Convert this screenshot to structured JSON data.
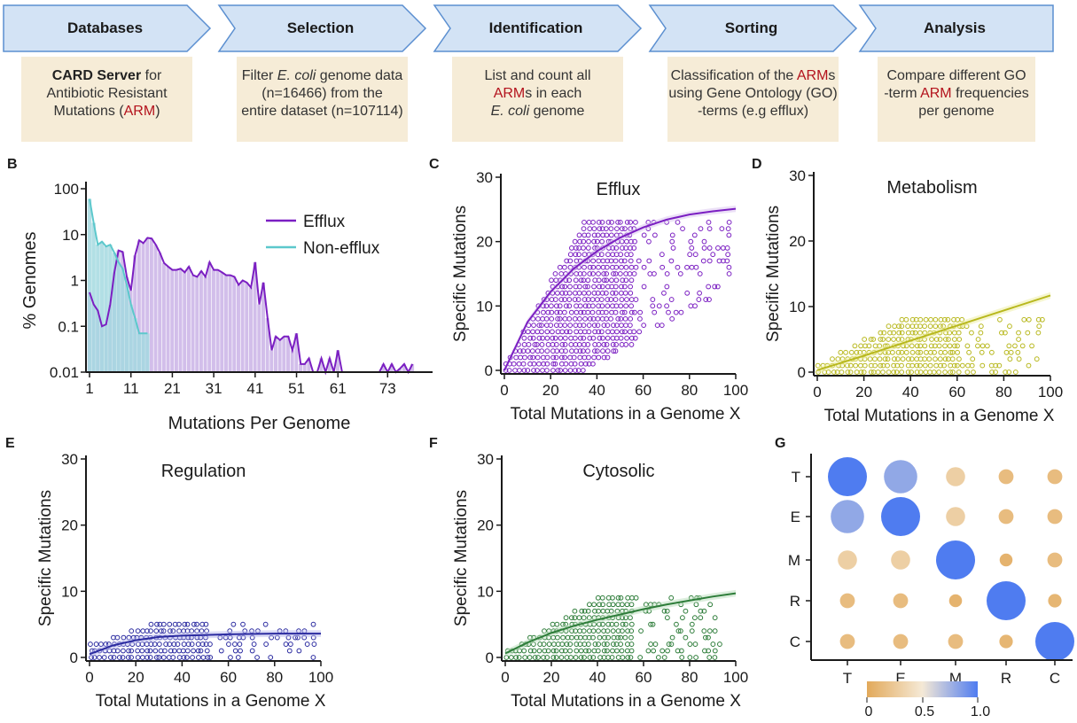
{
  "workflow": {
    "steps": [
      {
        "title": "Databases",
        "lines": [
          [
            {
              "t": "CARD  Server",
              "b": true
            },
            {
              "t": " for"
            }
          ],
          [
            {
              "t": "Antibiotic  Resistant"
            }
          ],
          [
            {
              "t": "Mutations ("
            },
            {
              "t": "ARM",
              "r": true
            },
            {
              "t": ")"
            }
          ]
        ]
      },
      {
        "title": "Selection",
        "lines": [
          [
            {
              "t": "Filter "
            },
            {
              "t": "E. coli",
              "i": true
            },
            {
              "t": " genome data"
            }
          ],
          [
            {
              "t": "(n=16466) from the"
            }
          ],
          [
            {
              "t": "entire dataset (n=107114)"
            }
          ]
        ]
      },
      {
        "title": "Identification",
        "lines": [
          [
            {
              "t": "List and count all"
            }
          ],
          [
            {
              "t": "ARM",
              "r": true
            },
            {
              "t": "s in each"
            }
          ],
          [
            {
              "t": "E. coli",
              "i": true
            },
            {
              "t": " genome"
            }
          ]
        ]
      },
      {
        "title": "Sorting",
        "lines": [
          [
            {
              "t": "Classification of the "
            },
            {
              "t": "ARM",
              "r": true
            },
            {
              "t": "s"
            }
          ],
          [
            {
              "t": "using Gene Ontology (GO)"
            }
          ],
          [
            {
              "t": "-terms (e.g  efflux)"
            }
          ]
        ]
      },
      {
        "title": "Analysis",
        "lines": [
          [
            {
              "t": "Compare different GO"
            }
          ],
          [
            {
              "t": "-term "
            },
            {
              "t": "ARM",
              "r": true
            },
            {
              "t": " frequencies"
            }
          ],
          [
            {
              "t": "per genome"
            }
          ]
        ]
      }
    ]
  },
  "panels": {
    "B": "B",
    "C": "C",
    "D": "D",
    "E": "E",
    "F": "F",
    "G": "G"
  },
  "colors": {
    "efflux": "#7B1FC2",
    "non_efflux": "#5CC8CC",
    "metabolism": "#C9C924",
    "regulation": "#2B2BA0",
    "cytosolic": "#2E7D3A",
    "banner_fill": "#D3E3F5",
    "banner_stroke": "#5B8FD0",
    "desc_fill": "#F6ECD7",
    "red": "#B3121C"
  },
  "chart_data": [
    {
      "id": "B",
      "type": "line",
      "xlabel": "Mutations Per Genome",
      "ylabel": "% Genomes",
      "y_scale": "log",
      "ylim": [
        0.01,
        100
      ],
      "xlim": [
        1,
        84
      ],
      "x_ticks": [
        1,
        11,
        21,
        31,
        41,
        51,
        61,
        73
      ],
      "y_ticks": [
        {
          "v": 100,
          "l": "100"
        },
        {
          "v": 10,
          "l": "10"
        },
        {
          "v": 1,
          "l": "1"
        },
        {
          "v": 0.1,
          "l": "0.1"
        },
        {
          "v": 0.01,
          "l": "0.01"
        }
      ],
      "legend": "top-right",
      "series": [
        {
          "name": "Efflux",
          "x": [
            1,
            2,
            3,
            4,
            5,
            6,
            7,
            8,
            9,
            10,
            11,
            12,
            13,
            14,
            15,
            16,
            17,
            18,
            19,
            20,
            21,
            22,
            23,
            24,
            25,
            26,
            27,
            28,
            29,
            30,
            31,
            32,
            33,
            34,
            35,
            36,
            37,
            38,
            39,
            40,
            41,
            42,
            43,
            44,
            45,
            46,
            47,
            48,
            49,
            50,
            51,
            52,
            53,
            54,
            55,
            56,
            57,
            58,
            59,
            60,
            61,
            62,
            67,
            68,
            69,
            70,
            71,
            72,
            73,
            74,
            75,
            76,
            77,
            78,
            79
          ],
          "y": [
            0.55,
            0.3,
            0.22,
            0.1,
            0.11,
            0.3,
            1.5,
            4.5,
            4.2,
            1.2,
            0.6,
            3.5,
            7.5,
            6.5,
            8.5,
            8.2,
            6.0,
            4.0,
            2.4,
            2.0,
            1.7,
            1.7,
            1.8,
            1.5,
            2.0,
            1.3,
            1.2,
            1.6,
            1.2,
            2.5,
            1.7,
            1.7,
            1.5,
            1.3,
            1.3,
            1.2,
            0.8,
            1.0,
            0.9,
            0.7,
            2.5,
            0.3,
            0.9,
            0.15,
            0.03,
            0.06,
            0.05,
            0.06,
            0.06,
            0.03,
            0.07,
            0.015,
            0.015,
            0.02,
            0.01,
            0.01,
            0.02,
            0.01,
            0.02,
            0.01,
            0.03,
            0.01,
            0.01,
            0.01,
            0.01,
            0.01,
            0.01,
            0.015,
            0.01,
            0.015,
            0.01,
            0.012,
            0.015,
            0.01,
            0.015
          ]
        },
        {
          "name": "Non-efflux",
          "x": [
            1,
            2,
            3,
            4,
            5,
            6,
            7,
            8,
            9,
            10,
            11,
            12,
            13,
            14,
            15
          ],
          "y": [
            60,
            18,
            6,
            7,
            5.5,
            6,
            4,
            2.5,
            1.8,
            0.8,
            0.3,
            0.15,
            0.07,
            0.07,
            0.07
          ]
        }
      ]
    },
    {
      "id": "C",
      "type": "scatter",
      "title": "Efflux",
      "xlabel": "Total Mutations in a Genome X",
      "ylabel": "Specific Mutations",
      "xlim": [
        0,
        100
      ],
      "ylim": [
        0,
        30
      ],
      "x_ticks": [
        0,
        20,
        40,
        60,
        80,
        100
      ],
      "y_ticks": [
        0,
        10,
        20,
        30
      ],
      "fit": {
        "x": [
          0,
          10,
          20,
          30,
          40,
          50,
          60,
          70,
          80,
          90,
          100
        ],
        "y": [
          0,
          7.5,
          12.2,
          15.8,
          18.5,
          20.6,
          22.2,
          23.4,
          24.2,
          24.7,
          25.1
        ]
      },
      "points": {
        "x_max": [
          16,
          24,
          32,
          42,
          50,
          60,
          70,
          85,
          98
        ],
        "y_at": [
          4,
          9,
          14,
          19,
          23,
          23,
          23,
          23,
          23
        ]
      }
    },
    {
      "id": "D",
      "type": "scatter",
      "title": "Metabolism",
      "xlabel": "Total Mutations in a Genome X",
      "ylabel": "Specific Mutations",
      "xlim": [
        0,
        100
      ],
      "ylim": [
        0,
        30
      ],
      "x_ticks": [
        0,
        20,
        40,
        60,
        80,
        100
      ],
      "y_ticks": [
        0,
        10,
        20,
        30
      ],
      "fit": {
        "x": [
          0,
          20,
          40,
          60,
          80,
          100
        ],
        "y": [
          0.3,
          2.5,
          4.8,
          7.1,
          9.4,
          11.7
        ]
      }
    },
    {
      "id": "E",
      "type": "scatter",
      "title": "Regulation",
      "xlabel": "Total Mutations in a Genome X",
      "ylabel": "Specific Mutations",
      "xlim": [
        0,
        100
      ],
      "ylim": [
        0,
        30
      ],
      "x_ticks": [
        0,
        20,
        40,
        60,
        80,
        100
      ],
      "y_ticks": [
        0,
        10,
        20,
        30
      ],
      "fit": {
        "x": [
          0,
          10,
          20,
          30,
          40,
          60,
          80,
          100
        ],
        "y": [
          0.5,
          1.8,
          2.6,
          3.1,
          3.3,
          3.5,
          3.6,
          3.6
        ]
      }
    },
    {
      "id": "F",
      "type": "scatter",
      "title": "Cytosolic",
      "xlabel": "Total Mutations in a Genome X",
      "ylabel": "Specific Mutations",
      "xlim": [
        0,
        100
      ],
      "ylim": [
        0,
        30
      ],
      "x_ticks": [
        0,
        20,
        40,
        60,
        80,
        100
      ],
      "y_ticks": [
        0,
        10,
        20,
        30
      ],
      "fit": {
        "x": [
          0,
          10,
          20,
          30,
          40,
          50,
          60,
          70,
          80,
          90,
          100
        ],
        "y": [
          0.6,
          2.3,
          3.7,
          4.8,
          5.7,
          6.5,
          7.3,
          8.0,
          8.6,
          9.2,
          9.7
        ]
      }
    },
    {
      "id": "G",
      "type": "heatmap",
      "rows": [
        "T",
        "E",
        "M",
        "R",
        "C"
      ],
      "cols": [
        "T",
        "E",
        "M",
        "R",
        "C"
      ],
      "values": [
        [
          1.0,
          0.8,
          0.3,
          0.15,
          0.15
        ],
        [
          0.8,
          1.0,
          0.3,
          0.15,
          0.15
        ],
        [
          0.3,
          0.3,
          1.0,
          0.08,
          0.15
        ],
        [
          0.15,
          0.15,
          0.08,
          1.0,
          0.1
        ],
        [
          0.15,
          0.15,
          0.15,
          0.1,
          1.0
        ]
      ],
      "colorbar": {
        "ticks": [
          "0",
          "0.5",
          "1.0"
        ],
        "low": "#E2A95A",
        "mid": "#F5E9D6",
        "high": "#4F7CF0"
      }
    }
  ]
}
